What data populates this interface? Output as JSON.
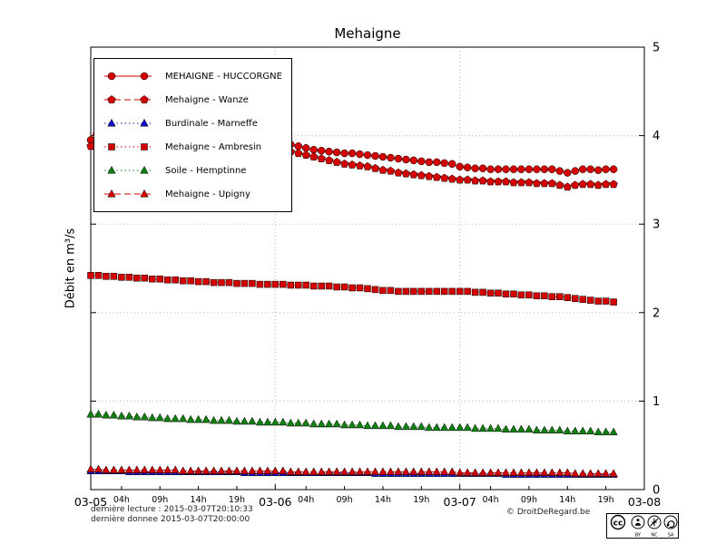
{
  "chart_data": {
    "type": "line",
    "title": "Mehaigne",
    "ylabel": "Débit en m³/s",
    "xlim_hours": [
      0,
      72
    ],
    "ylim": [
      0,
      5
    ],
    "yticks": [
      0,
      1,
      2,
      3,
      4,
      5
    ],
    "x_step_hours": 1,
    "x_major_ticks": [
      {
        "hour": 0,
        "label": "03-05"
      },
      {
        "hour": 24,
        "label": "03-06"
      },
      {
        "hour": 48,
        "label": "03-07"
      },
      {
        "hour": 72,
        "label": "03-08"
      }
    ],
    "x_minor_ticks": [
      {
        "hour": 4,
        "label": "04h"
      },
      {
        "hour": 9,
        "label": "09h"
      },
      {
        "hour": 14,
        "label": "14h"
      },
      {
        "hour": 19,
        "label": "19h"
      },
      {
        "hour": 28,
        "label": "04h"
      },
      {
        "hour": 33,
        "label": "09h"
      },
      {
        "hour": 38,
        "label": "14h"
      },
      {
        "hour": 43,
        "label": "19h"
      },
      {
        "hour": 52,
        "label": "04h"
      },
      {
        "hour": 57,
        "label": "09h"
      },
      {
        "hour": 62,
        "label": "14h"
      },
      {
        "hour": 67,
        "label": "19h"
      }
    ],
    "grid": {
      "vertical_hours": [
        24,
        48
      ],
      "horizontal_values": [
        1,
        2,
        3,
        4
      ]
    },
    "series": [
      {
        "label": "MEHAIGNE - HUCCORGNE",
        "color": "#d40000",
        "marker": "circle",
        "line": "solid",
        "values": [
          3.95,
          4.18,
          3.96,
          3.9,
          3.88,
          3.86,
          3.85,
          3.84,
          3.83,
          3.82,
          3.81,
          3.8,
          3.8,
          3.79,
          3.79,
          3.78,
          3.78,
          3.77,
          3.77,
          3.76,
          3.76,
          3.75,
          3.75,
          3.74,
          3.78,
          3.88,
          3.9,
          3.88,
          3.86,
          3.84,
          3.83,
          3.82,
          3.81,
          3.8,
          3.8,
          3.79,
          3.78,
          3.77,
          3.76,
          3.75,
          3.74,
          3.73,
          3.72,
          3.71,
          3.7,
          3.7,
          3.69,
          3.68,
          3.65,
          3.64,
          3.63,
          3.63,
          3.62,
          3.62,
          3.62,
          3.62,
          3.62,
          3.62,
          3.62,
          3.62,
          3.62,
          3.6,
          3.58,
          3.6,
          3.62,
          3.62,
          3.61,
          3.62,
          3.62
        ]
      },
      {
        "label": "Mehaigne - Wanze",
        "color": "#d40000",
        "marker": "pentagon",
        "line": "dashed",
        "values": [
          3.88,
          4.05,
          3.9,
          3.84,
          3.82,
          3.8,
          3.79,
          3.78,
          3.77,
          3.76,
          3.75,
          3.74,
          3.74,
          3.73,
          3.73,
          3.72,
          3.72,
          3.71,
          3.71,
          3.7,
          3.7,
          3.69,
          3.69,
          3.68,
          3.72,
          3.8,
          3.82,
          3.8,
          3.78,
          3.76,
          3.74,
          3.72,
          3.7,
          3.68,
          3.67,
          3.66,
          3.65,
          3.63,
          3.61,
          3.6,
          3.58,
          3.57,
          3.56,
          3.55,
          3.54,
          3.53,
          3.52,
          3.51,
          3.5,
          3.5,
          3.49,
          3.49,
          3.48,
          3.48,
          3.48,
          3.47,
          3.47,
          3.47,
          3.46,
          3.46,
          3.46,
          3.44,
          3.42,
          3.44,
          3.45,
          3.45,
          3.44,
          3.45,
          3.45
        ]
      },
      {
        "label": "Burdinale - Marneffe",
        "color": "#1010cc",
        "marker": "triangle",
        "line": "dotted",
        "values": [
          0.21,
          0.21,
          0.21,
          0.21,
          0.21,
          0.2,
          0.2,
          0.2,
          0.2,
          0.2,
          0.2,
          0.2,
          0.2,
          0.2,
          0.2,
          0.2,
          0.2,
          0.2,
          0.2,
          0.2,
          0.19,
          0.19,
          0.19,
          0.19,
          0.19,
          0.19,
          0.19,
          0.19,
          0.19,
          0.19,
          0.19,
          0.19,
          0.19,
          0.19,
          0.19,
          0.19,
          0.19,
          0.18,
          0.18,
          0.18,
          0.18,
          0.18,
          0.18,
          0.18,
          0.18,
          0.18,
          0.18,
          0.18,
          0.18,
          0.18,
          0.18,
          0.18,
          0.18,
          0.18,
          0.17,
          0.17,
          0.17,
          0.17,
          0.17,
          0.17,
          0.17,
          0.17,
          0.17,
          0.17,
          0.17,
          0.17,
          0.17,
          0.17,
          0.17
        ]
      },
      {
        "label": "Mehaigne - Ambresin",
        "color": "#d40000",
        "marker": "square",
        "line": "dotted",
        "values": [
          2.42,
          2.42,
          2.41,
          2.41,
          2.4,
          2.4,
          2.39,
          2.39,
          2.38,
          2.38,
          2.37,
          2.37,
          2.36,
          2.36,
          2.35,
          2.35,
          2.34,
          2.34,
          2.34,
          2.33,
          2.33,
          2.33,
          2.32,
          2.32,
          2.32,
          2.32,
          2.31,
          2.31,
          2.31,
          2.3,
          2.3,
          2.3,
          2.29,
          2.29,
          2.28,
          2.28,
          2.27,
          2.26,
          2.25,
          2.25,
          2.24,
          2.24,
          2.24,
          2.24,
          2.24,
          2.24,
          2.24,
          2.24,
          2.24,
          2.24,
          2.23,
          2.23,
          2.22,
          2.22,
          2.21,
          2.21,
          2.2,
          2.2,
          2.19,
          2.19,
          2.18,
          2.18,
          2.17,
          2.16,
          2.15,
          2.14,
          2.13,
          2.13,
          2.12
        ]
      },
      {
        "label": "Soile - Hemptinne",
        "color": "#108010",
        "marker": "triangle",
        "line": "dotted",
        "values": [
          0.85,
          0.85,
          0.84,
          0.84,
          0.83,
          0.83,
          0.82,
          0.82,
          0.81,
          0.81,
          0.8,
          0.8,
          0.8,
          0.79,
          0.79,
          0.79,
          0.78,
          0.78,
          0.78,
          0.77,
          0.77,
          0.77,
          0.76,
          0.76,
          0.76,
          0.76,
          0.75,
          0.75,
          0.75,
          0.74,
          0.74,
          0.74,
          0.74,
          0.73,
          0.73,
          0.73,
          0.72,
          0.72,
          0.72,
          0.72,
          0.71,
          0.71,
          0.71,
          0.71,
          0.7,
          0.7,
          0.7,
          0.7,
          0.7,
          0.7,
          0.69,
          0.69,
          0.69,
          0.69,
          0.68,
          0.68,
          0.68,
          0.68,
          0.67,
          0.67,
          0.67,
          0.67,
          0.66,
          0.66,
          0.66,
          0.66,
          0.65,
          0.65,
          0.65
        ]
      },
      {
        "label": "Mehaigne - Upigny",
        "color": "#d40000",
        "marker": "triangle",
        "line": "dashed",
        "values": [
          0.23,
          0.23,
          0.22,
          0.22,
          0.22,
          0.22,
          0.22,
          0.22,
          0.22,
          0.22,
          0.22,
          0.22,
          0.21,
          0.21,
          0.21,
          0.21,
          0.21,
          0.21,
          0.21,
          0.21,
          0.21,
          0.21,
          0.21,
          0.21,
          0.21,
          0.21,
          0.2,
          0.2,
          0.2,
          0.2,
          0.2,
          0.2,
          0.2,
          0.2,
          0.2,
          0.2,
          0.2,
          0.2,
          0.2,
          0.2,
          0.2,
          0.2,
          0.2,
          0.2,
          0.2,
          0.2,
          0.2,
          0.2,
          0.19,
          0.19,
          0.19,
          0.19,
          0.19,
          0.19,
          0.19,
          0.19,
          0.19,
          0.19,
          0.19,
          0.19,
          0.19,
          0.19,
          0.19,
          0.18,
          0.18,
          0.18,
          0.18,
          0.18,
          0.18
        ]
      }
    ]
  },
  "footer": {
    "last_reading": "dernière lecture : 2015-03-07T20:10:33",
    "last_data": "dernière donnee  2015-03-07T20:00:00",
    "copyright": "© DroitDeRegard.be"
  },
  "license_badge": {
    "logo": "cc",
    "terms": [
      "BY",
      "NC",
      "SA"
    ]
  }
}
